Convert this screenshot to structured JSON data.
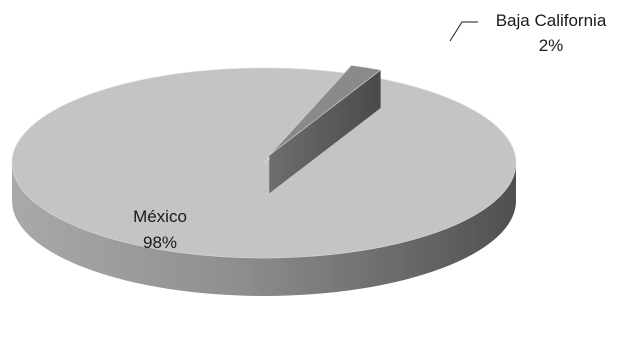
{
  "chart_data": {
    "type": "pie",
    "style": "3d-exploded",
    "title": "",
    "slices": [
      {
        "label": "México",
        "value": 98,
        "value_label": "98%",
        "color": "#c4c4c4",
        "side_color": "#7a7a7a"
      },
      {
        "label": "Baja California",
        "value": 2,
        "value_label": "2%",
        "color": "#8a8a8a",
        "side_color": "#5a5a5a"
      }
    ],
    "legend": "none",
    "data_labels": "label-and-percent"
  }
}
